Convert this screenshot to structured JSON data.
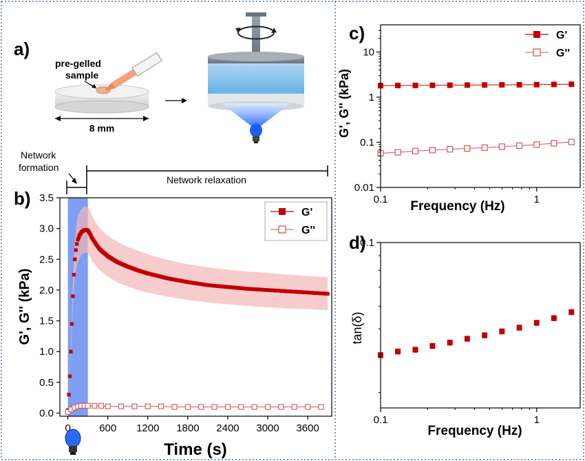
{
  "panel_labels": {
    "a": "a)",
    "b": "b)",
    "c": "c)",
    "d": "d)"
  },
  "schematic": {
    "sample_label_line1": "pre-gelled",
    "sample_label_line2": "sample",
    "diameter_label": "8 mm",
    "network_formation_line1": "Network",
    "network_formation_line2": "formation",
    "network_relaxation": "Network relaxation"
  },
  "colors": {
    "gprime": "#c00000",
    "gdoubleprime": "#d9534f",
    "band": "#f4b6b6",
    "light": "#4a86ff"
  },
  "chart_data": [
    {
      "id": "b",
      "type": "line",
      "xlabel": "Time (s)",
      "ylabel": "G', G'' (kPa)",
      "xlim": [
        -120,
        3960
      ],
      "ylim": [
        -0.05,
        3.5
      ],
      "xticks": [
        0,
        600,
        1200,
        1800,
        2400,
        3000,
        3600
      ],
      "yticks": [
        0.0,
        0.5,
        1.0,
        1.5,
        2.0,
        2.5,
        3.0,
        3.5
      ],
      "legend_position": "top-right",
      "illumination_window": [
        0,
        300
      ],
      "series": [
        {
          "name": "G'",
          "marker": "filled-square",
          "x": [
            0,
            15,
            30,
            45,
            60,
            75,
            90,
            105,
            120,
            135,
            150,
            180,
            210,
            240,
            270,
            300,
            330,
            360,
            420,
            480,
            600,
            750,
            900,
            1050,
            1200,
            1500,
            1800,
            2100,
            2400,
            2700,
            3000,
            3300,
            3600,
            3900
          ],
          "y": [
            0.05,
            0.3,
            0.6,
            1.0,
            1.45,
            1.9,
            2.25,
            2.5,
            2.65,
            2.75,
            2.82,
            2.9,
            2.95,
            2.97,
            2.98,
            2.97,
            2.92,
            2.85,
            2.75,
            2.66,
            2.55,
            2.45,
            2.38,
            2.32,
            2.27,
            2.19,
            2.13,
            2.08,
            2.05,
            2.02,
            2.0,
            1.98,
            1.96,
            1.94
          ],
          "band_upper": [
            0.05,
            0.32,
            0.65,
            1.1,
            1.6,
            2.1,
            2.5,
            2.8,
            3.0,
            3.12,
            3.2,
            3.28,
            3.32,
            3.35,
            3.36,
            3.35,
            3.3,
            3.22,
            3.1,
            3.0,
            2.88,
            2.78,
            2.7,
            2.64,
            2.58,
            2.49,
            2.42,
            2.37,
            2.33,
            2.3,
            2.28,
            2.25,
            2.23,
            2.21
          ],
          "band_lower": [
            0.05,
            0.28,
            0.55,
            0.9,
            1.3,
            1.7,
            2.0,
            2.2,
            2.3,
            2.38,
            2.44,
            2.52,
            2.58,
            2.6,
            2.61,
            2.6,
            2.55,
            2.48,
            2.4,
            2.32,
            2.22,
            2.12,
            2.06,
            2.0,
            1.96,
            1.89,
            1.84,
            1.8,
            1.77,
            1.74,
            1.72,
            1.7,
            1.69,
            1.67
          ]
        },
        {
          "name": "G''",
          "marker": "open-square",
          "x": [
            0,
            50,
            100,
            150,
            200,
            250,
            300,
            400,
            500,
            600,
            800,
            1000,
            1200,
            1400,
            1600,
            1800,
            2000,
            2200,
            2400,
            2600,
            2800,
            3000,
            3200,
            3400,
            3600,
            3800
          ],
          "y": [
            0.02,
            0.06,
            0.09,
            0.11,
            0.12,
            0.12,
            0.12,
            0.12,
            0.12,
            0.11,
            0.11,
            0.11,
            0.11,
            0.11,
            0.1,
            0.1,
            0.1,
            0.1,
            0.1,
            0.1,
            0.1,
            0.1,
            0.1,
            0.1,
            0.1,
            0.1
          ]
        }
      ]
    },
    {
      "id": "c",
      "type": "scatter",
      "xlabel": "Frequency (Hz)",
      "ylabel": "G', G'' (kPa)",
      "xscale": "log",
      "yscale": "log",
      "xlim": [
        0.1,
        1.9
      ],
      "ylim": [
        0.01,
        40
      ],
      "xtick_labels": [
        "0.1",
        "1"
      ],
      "ytick_labels": [
        "0.01",
        "0.1",
        "1",
        "10"
      ],
      "legend_position": "top-right",
      "series": [
        {
          "name": "G'",
          "marker": "filled-square",
          "x": [
            0.1,
            0.129,
            0.167,
            0.215,
            0.278,
            0.359,
            0.464,
            0.599,
            0.774,
            1.0,
            1.29,
            1.67
          ],
          "y": [
            1.8,
            1.81,
            1.82,
            1.83,
            1.84,
            1.85,
            1.86,
            1.87,
            1.88,
            1.89,
            1.91,
            1.93
          ]
        },
        {
          "name": "G''",
          "marker": "open-square",
          "x": [
            0.1,
            0.129,
            0.167,
            0.215,
            0.278,
            0.359,
            0.464,
            0.599,
            0.774,
            1.0,
            1.29,
            1.67
          ],
          "y": [
            0.057,
            0.06,
            0.064,
            0.067,
            0.07,
            0.073,
            0.076,
            0.08,
            0.084,
            0.089,
            0.095,
            0.102
          ]
        }
      ]
    },
    {
      "id": "d",
      "type": "scatter",
      "xlabel": "Frequency (Hz)",
      "ylabel": "tan(δ)",
      "xscale": "log",
      "yscale": "log",
      "xlim": [
        0.1,
        1.9
      ],
      "ylim": [
        0.0265,
        0.1
      ],
      "xtick_labels": [
        "0.1",
        "1"
      ],
      "ytick_labels": [
        "0.1"
      ],
      "series": [
        {
          "name": "tan(δ)",
          "marker": "filled-square",
          "x": [
            0.1,
            0.129,
            0.167,
            0.215,
            0.278,
            0.359,
            0.464,
            0.599,
            0.774,
            1.0,
            1.29,
            1.67
          ],
          "y": [
            0.0405,
            0.0417,
            0.0423,
            0.0436,
            0.0448,
            0.0462,
            0.0475,
            0.049,
            0.0505,
            0.0525,
            0.0545,
            0.0572
          ]
        }
      ]
    }
  ]
}
